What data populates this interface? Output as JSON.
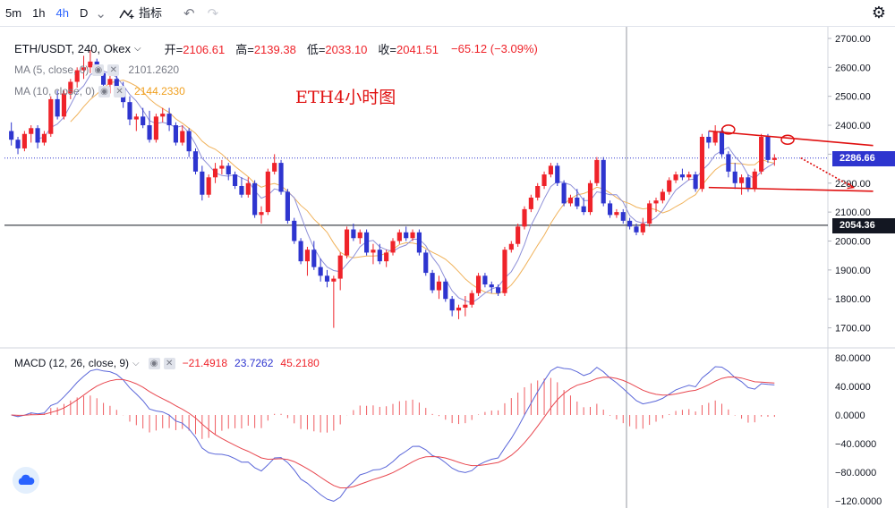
{
  "toolbar": {
    "intervals": [
      "5m",
      "1h",
      "4h",
      "D"
    ],
    "active_interval": "4h",
    "indicators_label": "指标",
    "icons": [
      "chevron-down-icon",
      "indicators-icon",
      "undo-icon",
      "redo-icon",
      "gear-icon"
    ]
  },
  "legend": {
    "symbol": "ETH/USDT, 240, Okex",
    "ohlc": [
      {
        "label": "开",
        "value": "2106.61"
      },
      {
        "label": "高",
        "value": "2139.38"
      },
      {
        "label": "低",
        "value": "2033.10"
      },
      {
        "label": "收",
        "value": "2041.51"
      }
    ],
    "change": "−65.12 (−3.09%)",
    "ma5": {
      "label": "MA (5, close, 0)",
      "value": "2101.2620"
    },
    "ma10": {
      "label": "MA (10, close, 0)",
      "value": "2144.2330"
    },
    "macd": {
      "label": "MACD (12, 26, close, 9)",
      "values": [
        "−21.4918",
        "23.7262",
        "45.2180"
      ]
    }
  },
  "annotation": "ETH4小时图",
  "colors": {
    "up": "#ef232a",
    "down": "#2e35cf",
    "ma5": "#8e90d8",
    "ma10": "#f0b25a",
    "macd_line": "#5b67d9",
    "signal_line": "#e8474f",
    "annotation": "#e01010"
  },
  "chart_data": [
    {
      "type": "candlestick",
      "y_axis_ticks": [
        "2700.00",
        "2600.00",
        "2500.00",
        "2400.00",
        "2300.00",
        "2200.00",
        "2100.00",
        "2000.00",
        "1900.00",
        "1800.00",
        "1700.00"
      ],
      "ylim": [
        1640,
        2740
      ],
      "price_markers": [
        {
          "value": "2286.66",
          "color": "#2e35cf"
        },
        {
          "value": "2054.36",
          "color": "#131722"
        }
      ],
      "candles": [
        [
          2380,
          2410,
          2330,
          2350
        ],
        [
          2350,
          2360,
          2300,
          2320
        ],
        [
          2320,
          2380,
          2310,
          2370
        ],
        [
          2370,
          2400,
          2340,
          2390
        ],
        [
          2390,
          2400,
          2320,
          2340
        ],
        [
          2340,
          2380,
          2330,
          2370
        ],
        [
          2370,
          2500,
          2360,
          2490
        ],
        [
          2490,
          2520,
          2420,
          2430
        ],
        [
          2430,
          2520,
          2420,
          2510
        ],
        [
          2510,
          2560,
          2490,
          2550
        ],
        [
          2550,
          2600,
          2530,
          2590
        ],
        [
          2590,
          2640,
          2560,
          2600
        ],
        [
          2600,
          2660,
          2580,
          2620
        ],
        [
          2620,
          2630,
          2570,
          2580
        ],
        [
          2580,
          2590,
          2520,
          2540
        ],
        [
          2540,
          2570,
          2510,
          2560
        ],
        [
          2560,
          2580,
          2520,
          2530
        ],
        [
          2530,
          2550,
          2460,
          2480
        ],
        [
          2480,
          2500,
          2400,
          2420
        ],
        [
          2420,
          2440,
          2380,
          2430
        ],
        [
          2430,
          2460,
          2390,
          2400
        ],
        [
          2400,
          2450,
          2340,
          2350
        ],
        [
          2350,
          2440,
          2340,
          2430
        ],
        [
          2430,
          2460,
          2410,
          2440
        ],
        [
          2440,
          2460,
          2380,
          2400
        ],
        [
          2400,
          2410,
          2330,
          2340
        ],
        [
          2340,
          2400,
          2330,
          2380
        ],
        [
          2380,
          2390,
          2290,
          2310
        ],
        [
          2310,
          2320,
          2230,
          2240
        ],
        [
          2240,
          2260,
          2140,
          2160
        ],
        [
          2160,
          2230,
          2150,
          2220
        ],
        [
          2220,
          2270,
          2200,
          2250
        ],
        [
          2250,
          2280,
          2230,
          2260
        ],
        [
          2260,
          2270,
          2210,
          2230
        ],
        [
          2230,
          2240,
          2180,
          2190
        ],
        [
          2190,
          2220,
          2150,
          2160
        ],
        [
          2160,
          2220,
          2150,
          2200
        ],
        [
          2200,
          2210,
          2080,
          2090
        ],
        [
          2090,
          2120,
          2060,
          2100
        ],
        [
          2100,
          2250,
          2090,
          2240
        ],
        [
          2240,
          2300,
          2230,
          2270
        ],
        [
          2270,
          2280,
          2160,
          2170
        ],
        [
          2170,
          2180,
          2060,
          2070
        ],
        [
          2070,
          2080,
          1990,
          2000
        ],
        [
          2000,
          2010,
          1920,
          1930
        ],
        [
          1930,
          1980,
          1880,
          1970
        ],
        [
          1970,
          2000,
          1900,
          1910
        ],
        [
          1910,
          1940,
          1860,
          1880
        ],
        [
          1880,
          1900,
          1840,
          1860
        ],
        [
          1860,
          1880,
          1700,
          1870
        ],
        [
          1870,
          1960,
          1830,
          1950
        ],
        [
          1950,
          2050,
          1940,
          2040
        ],
        [
          2040,
          2060,
          2000,
          2010
        ],
        [
          2010,
          2040,
          1990,
          2030
        ],
        [
          2030,
          2040,
          1950,
          1960
        ],
        [
          1960,
          1990,
          1920,
          1970
        ],
        [
          1970,
          1990,
          1920,
          1930
        ],
        [
          1930,
          1970,
          1910,
          1960
        ],
        [
          1960,
          2010,
          1950,
          2000
        ],
        [
          2000,
          2040,
          1990,
          2030
        ],
        [
          2030,
          2050,
          2000,
          2010
        ],
        [
          2010,
          2040,
          2000,
          2030
        ],
        [
          2030,
          2040,
          1950,
          1960
        ],
        [
          1960,
          1970,
          1880,
          1890
        ],
        [
          1890,
          1900,
          1820,
          1830
        ],
        [
          1830,
          1880,
          1800,
          1860
        ],
        [
          1860,
          1870,
          1790,
          1800
        ],
        [
          1800,
          1810,
          1740,
          1760
        ],
        [
          1760,
          1780,
          1730,
          1770
        ],
        [
          1770,
          1810,
          1740,
          1780
        ],
        [
          1780,
          1830,
          1770,
          1820
        ],
        [
          1820,
          1890,
          1810,
          1880
        ],
        [
          1880,
          1890,
          1840,
          1850
        ],
        [
          1850,
          1860,
          1820,
          1840
        ],
        [
          1840,
          1850,
          1810,
          1820
        ],
        [
          1820,
          1980,
          1810,
          1970
        ],
        [
          1970,
          2000,
          1960,
          1990
        ],
        [
          1990,
          2060,
          1980,
          2050
        ],
        [
          2050,
          2120,
          2040,
          2110
        ],
        [
          2110,
          2160,
          2100,
          2150
        ],
        [
          2150,
          2200,
          2140,
          2190
        ],
        [
          2190,
          2240,
          2180,
          2230
        ],
        [
          2230,
          2270,
          2220,
          2260
        ],
        [
          2260,
          2270,
          2190,
          2200
        ],
        [
          2200,
          2210,
          2120,
          2130
        ],
        [
          2130,
          2160,
          2120,
          2150
        ],
        [
          2150,
          2180,
          2110,
          2120
        ],
        [
          2120,
          2150,
          2090,
          2100
        ],
        [
          2100,
          2210,
          2090,
          2200
        ],
        [
          2200,
          2290,
          2190,
          2280
        ],
        [
          2280,
          2290,
          2120,
          2130
        ],
        [
          2130,
          2140,
          2080,
          2090
        ],
        [
          2090,
          2110,
          2080,
          2100
        ],
        [
          2100,
          2110,
          2060,
          2070
        ],
        [
          2070,
          2080,
          2040,
          2050
        ],
        [
          2050,
          2060,
          2020,
          2030
        ],
        [
          2030,
          2080,
          2020,
          2060
        ],
        [
          2060,
          2140,
          2050,
          2130
        ],
        [
          2130,
          2150,
          2100,
          2140
        ],
        [
          2140,
          2180,
          2130,
          2170
        ],
        [
          2170,
          2220,
          2160,
          2210
        ],
        [
          2210,
          2240,
          2200,
          2230
        ],
        [
          2230,
          2250,
          2210,
          2220
        ],
        [
          2220,
          2240,
          2210,
          2230
        ],
        [
          2230,
          2240,
          2170,
          2180
        ],
        [
          2180,
          2370,
          2170,
          2360
        ],
        [
          2360,
          2380,
          2320,
          2340
        ],
        [
          2340,
          2400,
          2330,
          2380
        ],
        [
          2380,
          2390,
          2290,
          2300
        ],
        [
          2300,
          2310,
          2220,
          2240
        ],
        [
          2240,
          2270,
          2180,
          2200
        ],
        [
          2200,
          2230,
          2160,
          2220
        ],
        [
          2220,
          2230,
          2170,
          2180
        ],
        [
          2180,
          2250,
          2170,
          2240
        ],
        [
          2240,
          2370,
          2230,
          2360
        ],
        [
          2360,
          2370,
          2270,
          2280
        ],
        [
          2280,
          2300,
          2260,
          2287
        ]
      ],
      "annotation_lines": [
        {
          "type": "resistance",
          "from": {
            "bar": 106,
            "price": 2380
          },
          "to": {
            "bar": 131,
            "price": 2330
          }
        },
        {
          "type": "support",
          "from": {
            "bar": 106,
            "price": 2185
          },
          "to": {
            "bar": 131,
            "price": 2172
          }
        },
        {
          "type": "projection",
          "from": {
            "bar": 120,
            "price": 2287
          },
          "to": {
            "bar": 128,
            "price": 2185
          }
        }
      ],
      "circles": [
        {
          "bar": 109,
          "price": 2385
        },
        {
          "bar": 118,
          "price": 2350
        }
      ]
    },
    {
      "type": "macd",
      "y_axis_ticks": [
        "80.0000",
        "40.0000",
        "0.0000",
        "−40.0000",
        "−80.0000",
        "−120.0000"
      ],
      "ylim": [
        -130,
        90
      ]
    }
  ]
}
